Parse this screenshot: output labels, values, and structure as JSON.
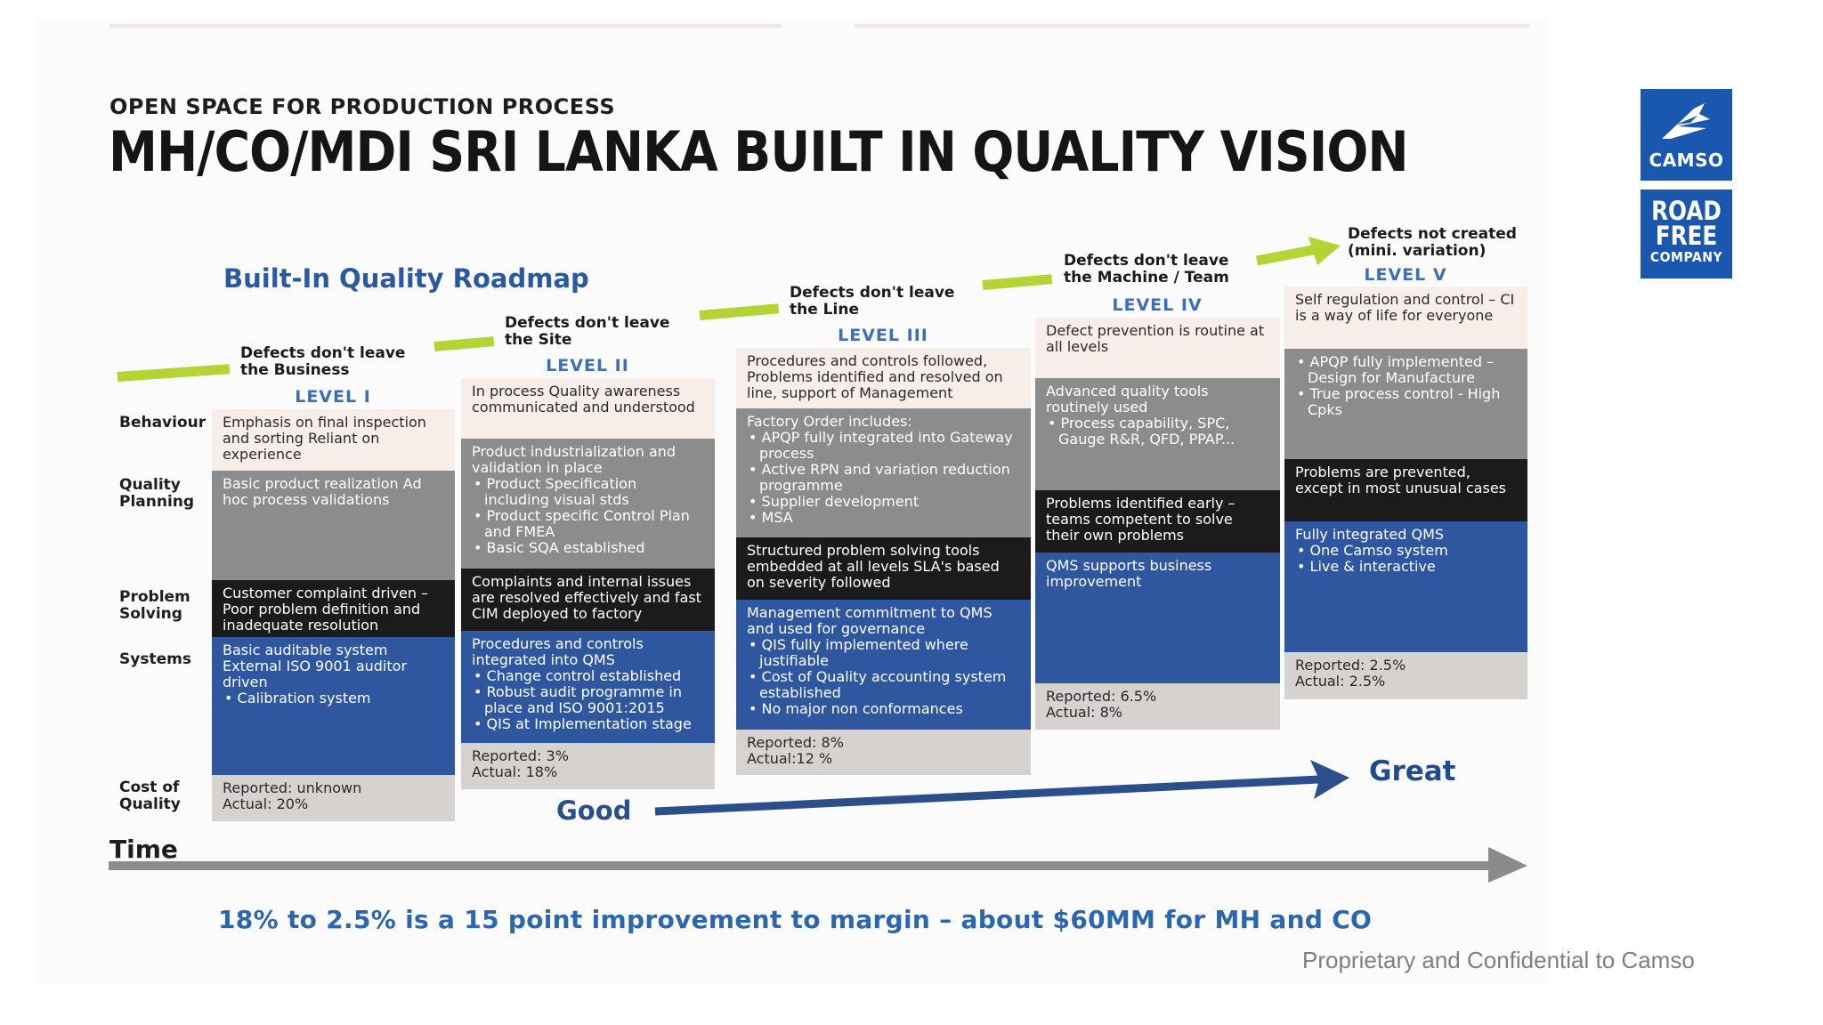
{
  "header": {
    "subtitle": "OPEN SPACE FOR PRODUCTION PROCESS",
    "title": "MH/CO/MDI SRI LANKA BUILT IN QUALITY VISION"
  },
  "logos": {
    "camso": "CAMSO",
    "road_free_line1": "ROAD",
    "road_free_line2": "FREE",
    "road_free_line3": "COMPANY"
  },
  "roadmap_title": "Built-In Quality Roadmap",
  "row_labels": {
    "behaviour": "Behaviour",
    "quality_planning": "Quality Planning",
    "problem_solving": "Problem Solving",
    "systems": "Systems",
    "cost_of_quality": "Cost of Quality"
  },
  "levels": [
    {
      "step": "Defects don't leave the Business",
      "level": "LEVEL I",
      "behaviour": "Emphasis on final inspection and sorting Reliant on experience",
      "planning": "Basic product realization Ad hoc process validations",
      "problem": "Customer complaint driven – Poor problem definition and inadequate resolution",
      "systems_intro": "Basic auditable system External ISO 9001 auditor driven",
      "systems_items": [
        "Calibration system"
      ],
      "cost": "Reported: unknown\nActual: 20%"
    },
    {
      "step": "Defects don't leave the Site",
      "level": "LEVEL II",
      "behaviour": "In process Quality awareness communicated and understood",
      "planning_intro": "Product industrialization and validation in place",
      "planning_items": [
        "Product Specification including visual stds",
        "Product specific Control Plan and FMEA",
        "Basic SQA established"
      ],
      "problem": "Complaints and internal issues are resolved effectively and fast CIM deployed to factory",
      "systems_intro": "Procedures and controls integrated into QMS",
      "systems_items": [
        "Change control established",
        "Robust audit programme in place and ISO 9001:2015",
        "QIS at Implementation stage"
      ],
      "cost": "Reported: 3%\nActual: 18%"
    },
    {
      "step": "Defects don't leave the Line",
      "level": "LEVEL III",
      "behaviour": "Procedures and controls followed, Problems identified and resolved on line, support of Management",
      "planning_intro": "Factory Order includes:",
      "planning_items": [
        "APQP fully integrated into Gateway process",
        "Active RPN and variation reduction programme",
        "Supplier development",
        "MSA"
      ],
      "problem": "Structured problem solving tools embedded at all levels SLA's based on severity followed",
      "systems_intro": "Management commitment to QMS and used for governance",
      "systems_items": [
        "QIS fully implemented where justifiable",
        "Cost of Quality accounting system established",
        "No major non conformances"
      ],
      "cost": "Reported: 8%\nActual:12 %"
    },
    {
      "step": "Defects don't leave the Machine / Team",
      "level": "LEVEL IV",
      "behaviour": "Defect prevention is routine at all levels",
      "planning_intro": "Advanced quality tools routinely used",
      "planning_items": [
        "Process capability, SPC, Gauge R&R, QFD, PPAP..."
      ],
      "problem": "Problems identified early – teams competent to solve their own problems",
      "systems_intro": "QMS supports business improvement",
      "systems_items": [],
      "cost": "Reported: 6.5%\nActual: 8%"
    },
    {
      "step": "Defects not created (mini. variation)",
      "level": "LEVEL V",
      "behaviour": "Self regulation and control – CI is a way of life for everyone",
      "planning_intro": "",
      "planning_items": [
        "APQP fully implemented – Design for Manufacture",
        "True process control - High Cpks"
      ],
      "problem": "Problems are prevented, except in most unusual cases",
      "systems_intro": "Fully integrated QMS",
      "systems_items": [
        "One Camso system",
        "Live & interactive"
      ],
      "cost": "Reported: 2.5%\nActual: 2.5%"
    }
  ],
  "good_label": "Good",
  "great_label": "Great",
  "time_label": "Time",
  "bottom_note": "18% to 2.5% is a 15 point improvement to margin – about $60MM for MH and CO",
  "footer": "Proprietary and Confidential to Camso",
  "colors": {
    "pink": "#f8eee9",
    "grey": "#8d8c8d",
    "black": "#1b1b1b",
    "blue": "#2f57a0",
    "light_grey": "#d6d2cf",
    "green_step": "#b3d433",
    "logo_blue": "#1a58b0",
    "roadmap_title": "#2a59a3"
  }
}
